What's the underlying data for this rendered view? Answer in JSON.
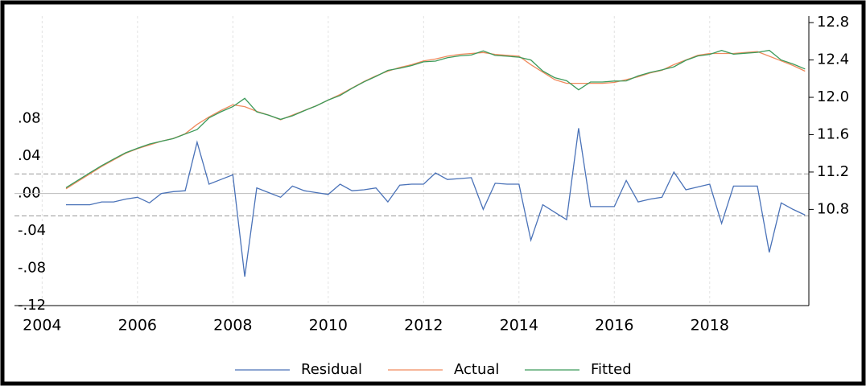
{
  "chart_data": {
    "type": "line",
    "x": [
      2004.5,
      2004.75,
      2005,
      2005.25,
      2005.5,
      2005.75,
      2006,
      2006.25,
      2006.5,
      2006.75,
      2007,
      2007.25,
      2007.5,
      2007.75,
      2008,
      2008.25,
      2008.5,
      2008.75,
      2009,
      2009.25,
      2009.5,
      2009.75,
      2010,
      2010.25,
      2010.5,
      2010.75,
      2011,
      2011.25,
      2011.5,
      2011.75,
      2012,
      2012.25,
      2012.5,
      2012.75,
      2013,
      2013.25,
      2013.5,
      2013.75,
      2014,
      2014.25,
      2014.5,
      2014.75,
      2015,
      2015.25,
      2015.5,
      2015.75,
      2016,
      2016.25,
      2016.5,
      2016.75,
      2017,
      2017.25,
      2017.5,
      2017.75,
      2018,
      2018.25,
      2018.5,
      2018.75,
      2019,
      2019.25,
      2019.5,
      2019.75,
      2020
    ],
    "series": [
      {
        "name": "Residual",
        "color": "#4a72b8",
        "axis": "y",
        "values": [
          -0.012,
          -0.012,
          -0.012,
          -0.009,
          -0.009,
          -0.006,
          -0.004,
          -0.01,
          0.0,
          0.002,
          0.003,
          0.055,
          0.01,
          0.015,
          0.02,
          -0.089,
          0.006,
          0.001,
          -0.004,
          0.008,
          0.003,
          0.001,
          -0.001,
          0.01,
          0.003,
          0.004,
          0.006,
          -0.009,
          0.009,
          0.01,
          0.01,
          0.022,
          0.015,
          0.016,
          0.017,
          -0.017,
          0.011,
          0.01,
          0.01,
          -0.05,
          -0.012,
          -0.02,
          -0.028,
          0.07,
          -0.014,
          -0.014,
          -0.014,
          0.014,
          -0.009,
          -0.006,
          -0.004,
          0.023,
          0.004,
          0.007,
          0.01,
          -0.032,
          0.008,
          0.008,
          0.008,
          -0.063,
          -0.01,
          -0.017,
          -0.023
        ]
      },
      {
        "name": "Actual",
        "color": "#f08a5d",
        "axis": "y2",
        "values": [
          11.02,
          11.1,
          11.18,
          11.26,
          11.33,
          11.4,
          11.45,
          11.49,
          11.53,
          11.56,
          11.61,
          11.71,
          11.79,
          11.86,
          11.92,
          11.9,
          11.85,
          11.81,
          11.76,
          11.81,
          11.86,
          11.91,
          11.97,
          12.03,
          12.1,
          12.17,
          12.23,
          12.28,
          12.32,
          12.35,
          12.39,
          12.41,
          12.44,
          12.46,
          12.47,
          12.48,
          12.46,
          12.45,
          12.44,
          12.35,
          12.27,
          12.19,
          12.15,
          12.15,
          12.15,
          12.15,
          12.16,
          12.19,
          12.22,
          12.26,
          12.29,
          12.35,
          12.4,
          12.45,
          12.47,
          12.47,
          12.47,
          12.48,
          12.49,
          12.44,
          12.39,
          12.34,
          12.28
        ]
      },
      {
        "name": "Fitted",
        "color": "#3c9a5a",
        "axis": "y2",
        "values": [
          11.032,
          11.112,
          11.192,
          11.269,
          11.339,
          11.406,
          11.454,
          11.5,
          11.53,
          11.558,
          11.607,
          11.655,
          11.78,
          11.845,
          11.9,
          11.989,
          11.844,
          11.809,
          11.764,
          11.802,
          11.857,
          11.909,
          11.971,
          12.02,
          12.097,
          12.166,
          12.224,
          12.289,
          12.311,
          12.34,
          12.38,
          12.388,
          12.425,
          12.444,
          12.453,
          12.497,
          12.449,
          12.44,
          12.43,
          12.4,
          12.282,
          12.21,
          12.178,
          12.08,
          12.164,
          12.164,
          12.174,
          12.176,
          12.229,
          12.266,
          12.294,
          12.327,
          12.396,
          12.443,
          12.46,
          12.502,
          12.462,
          12.472,
          12.482,
          12.503,
          12.4,
          12.357,
          12.303
        ]
      }
    ],
    "xlim": [
      2003.42,
      2020.08
    ],
    "xticks": [
      2004,
      2006,
      2008,
      2010,
      2012,
      2014,
      2016,
      2018
    ],
    "ylim": [
      -0.12,
      0.19
    ],
    "yticks": [
      {
        "value": -0.12,
        "label": "-.12"
      },
      {
        "value": -0.08,
        "label": "-.08"
      },
      {
        "value": -0.04,
        "label": "-.04"
      },
      {
        "value": 0,
        "label": ".00"
      },
      {
        "value": 0.04,
        "label": ".04"
      },
      {
        "value": 0.08,
        "label": ".08"
      }
    ],
    "y2lim": [
      9.77,
      12.87
    ],
    "y2ticks": [
      10.8,
      11.2,
      11.6,
      {
        "value": 12.0,
        "label": "12.0"
      },
      12.4,
      12.8
    ],
    "ref_lines": {
      "solid": [
        0
      ],
      "dashed": [
        0.021,
        -0.024
      ]
    },
    "grid": true,
    "legend": "bottom"
  }
}
